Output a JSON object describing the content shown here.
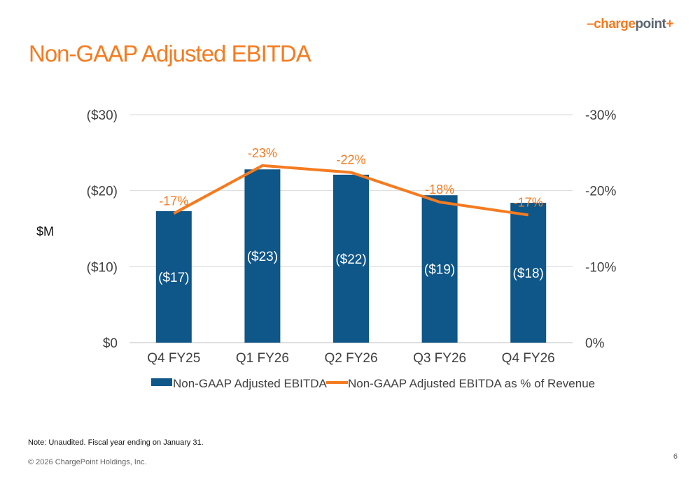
{
  "logo": {
    "dash": "–",
    "charge": "charge",
    "point": "point",
    "plus": "+"
  },
  "title": "Non-GAAP Adjusted EBITDA",
  "footnote": "Note: Unaudited. Fiscal year ending on January 31.",
  "copyright": "© 2026 ChargePoint Holdings, Inc.",
  "page_number": "6",
  "colors": {
    "bar": "#0f5689",
    "line": "#f47b20",
    "title": "#f47b20"
  },
  "chart_data": {
    "type": "bar",
    "categories": [
      "Q4 FY25",
      "Q1 FY26",
      "Q2 FY26",
      "Q3 FY26",
      "Q4 FY26"
    ],
    "ylabel": "$M",
    "ylim": [
      0,
      30
    ],
    "y_ticks": [
      "$0",
      "($10)",
      "($20)",
      "($30)"
    ],
    "y2lim": [
      0,
      30
    ],
    "y2_ticks": [
      "0%",
      "-10%",
      "-20%",
      "-30%"
    ],
    "grid": true,
    "legend_position": "bottom",
    "series": [
      {
        "name": "Non-GAAP Adjusted EBITDA",
        "type": "bar",
        "axis": "left",
        "values": [
          17.3,
          22.8,
          22.1,
          19.4,
          18.4
        ],
        "labels": [
          "($17)",
          "($23)",
          "($22)",
          "($19)",
          "($18)"
        ]
      },
      {
        "name": "Non-GAAP Adjusted EBITDA as % of Revenue",
        "type": "line",
        "axis": "right",
        "values": [
          17,
          23.3,
          22.4,
          18.5,
          16.8
        ],
        "labels": [
          "-17%",
          "-23%",
          "-22%",
          "-18%",
          "-17%"
        ]
      }
    ]
  }
}
